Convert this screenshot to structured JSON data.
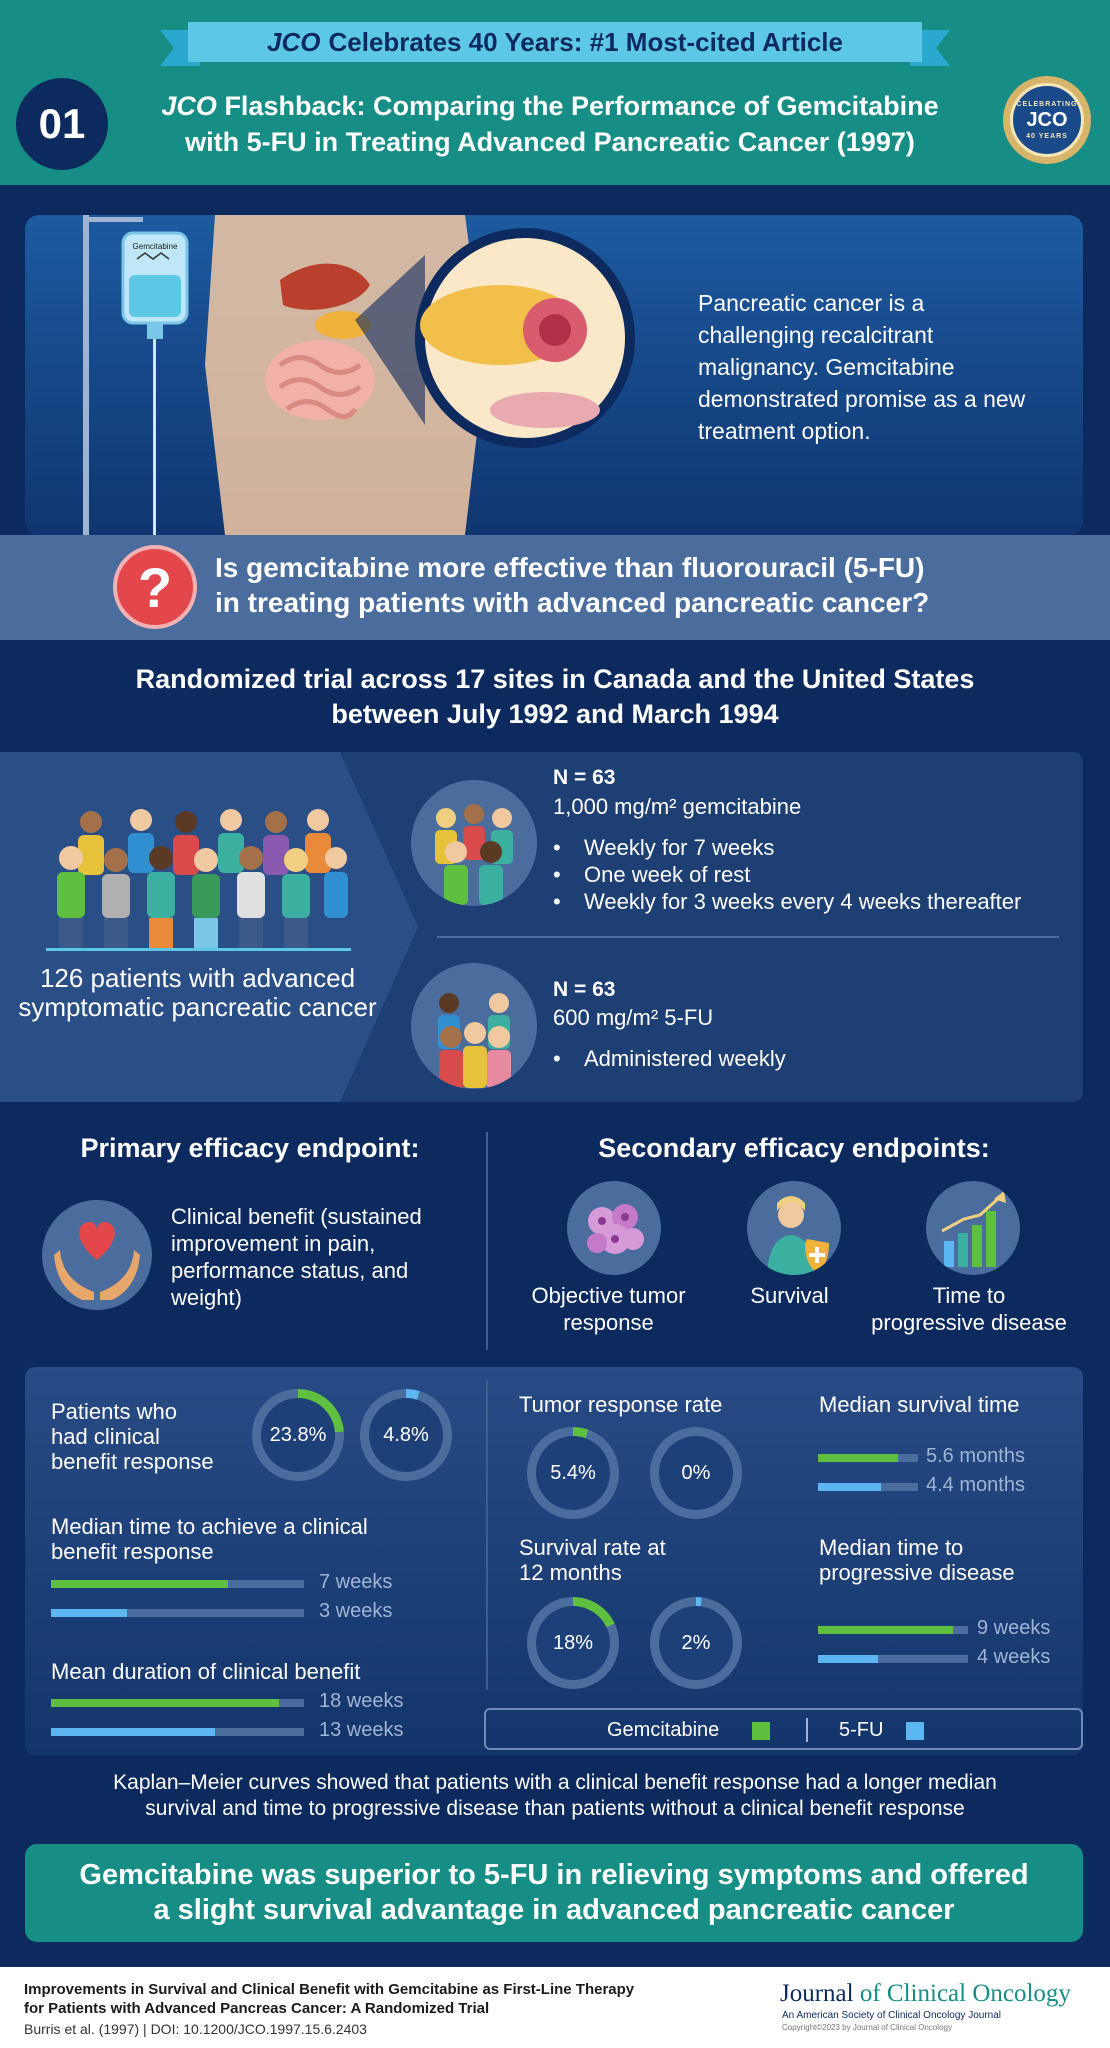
{
  "header": {
    "ribbon_italic": "JCO",
    "ribbon_rest": "Celebrates 40 Years: #1 Most-cited Article",
    "number": "01",
    "title_italic": "JCO",
    "title_line1_rest": "Flashback: Comparing the Performance of Gemcitabine",
    "title_line2": "with 5-FU in Treating Advanced Pancreatic Cancer (1997)",
    "seal_top": "CELEBRATING",
    "seal_mid": "JCO",
    "seal_bottom": "40 YEARS"
  },
  "hero": {
    "iv_bag_label": "Gemcitabine",
    "text": "Pancreatic cancer is a challenging recalcitrant malignancy. Gemcitabine demonstrated promise as a new treatment option."
  },
  "question": {
    "icon": "question-mark-icon",
    "line1": "Is gemcitabine more effective than fluorouracil (5-FU)",
    "line2": "in treating patients with advanced pancreatic cancer?"
  },
  "trial": {
    "line1": "Randomized trial across 17 sites in Canada and the United States",
    "line2": "between July 1992 and March 1994"
  },
  "patients": {
    "total_text": "126 patients with advanced symptomatic pancreatic cancer",
    "arm1": {
      "n": "N = 63",
      "dose": "1,000 mg/m² gemcitabine",
      "schedule": [
        "Weekly for 7 weeks",
        "One week of rest",
        "Weekly for 3 weeks every 4 weeks thereafter"
      ]
    },
    "arm2": {
      "n": "N = 63",
      "dose": "600 mg/m² 5-FU",
      "schedule": [
        "Administered weekly"
      ]
    }
  },
  "endpoints": {
    "primary_title": "Primary efficacy endpoint:",
    "primary_text": "Clinical benefit (sustained improvement in pain, performance status, and weight)",
    "secondary_title": "Secondary efficacy endpoints:",
    "secondary": [
      {
        "label_1": "Objective tumor",
        "label_2": "response",
        "icon": "tumor-cells-icon"
      },
      {
        "label_1": "Survival",
        "label_2": "",
        "icon": "survival-shield-icon"
      },
      {
        "label_1": "Time to",
        "label_2": "progressive disease",
        "icon": "growth-chart-icon"
      }
    ]
  },
  "results": {
    "clinical_benefit": {
      "label_1": "Patients who",
      "label_2": "had clinical",
      "label_3": "benefit response",
      "gem": "23.8%",
      "gem_value": 23.8,
      "fu": "4.8%",
      "fu_value": 4.8
    },
    "time_to_benefit": {
      "label_1": "Median time to achieve a clinical",
      "label_2": "benefit response",
      "gem": "7 weeks",
      "gem_value": 7,
      "fu": "3 weeks",
      "fu_value": 3,
      "max": 10
    },
    "duration_benefit": {
      "label": "Mean duration of clinical benefit",
      "gem": "18 weeks",
      "gem_value": 18,
      "fu": "13 weeks",
      "fu_value": 13,
      "max": 20
    },
    "tumor_response": {
      "label": "Tumor response rate",
      "gem": "5.4%",
      "gem_value": 5.4,
      "fu": "0%",
      "fu_value": 0
    },
    "median_survival": {
      "label": "Median survival time",
      "gem": "5.6 months",
      "gem_value": 5.6,
      "fu": "4.4 months",
      "fu_value": 4.4,
      "max": 7
    },
    "survival_12m": {
      "label_1": "Survival rate at",
      "label_2": "12 months",
      "gem": "18%",
      "gem_value": 18,
      "fu": "2%",
      "fu_value": 2
    },
    "time_to_progression": {
      "label_1": "Median time to",
      "label_2": "progressive disease",
      "gem": "9 weeks",
      "gem_value": 9,
      "fu": "4 weeks",
      "fu_value": 4,
      "max": 10
    },
    "legend": {
      "gem": "Gemcitabine",
      "fu": "5-FU"
    }
  },
  "colors": {
    "gem": "#5fbf3f",
    "fu": "#5cb6f2",
    "track": "#4a6d9e"
  },
  "km_text": {
    "line1": "Kaplan–Meier curves showed that patients with a clinical benefit response had a longer median",
    "line2": "survival and time to progressive disease than patients without a clinical benefit response"
  },
  "conclusion": {
    "line1": "Gemcitabine was superior to 5-FU in relieving symptoms and offered",
    "line2": "a slight survival advantage in advanced pancreatic cancer"
  },
  "footer": {
    "ref_line1": "Improvements in Survival and Clinical Benefit with Gemcitabine as First-Line Therapy",
    "ref_line2": "for Patients with Advanced Pancreas Cancer: A Randomized Trial",
    "doi": "Burris et al. (1997) | DOI: 10.1200/JCO.1997.15.6.2403",
    "logo_a": "Journal",
    "logo_b": "of Clinical Oncology",
    "logo_sub": "An American Society of Clinical Oncology Journal",
    "logo_copy": "Copyright©2023 by Journal of Clinical Oncology"
  }
}
